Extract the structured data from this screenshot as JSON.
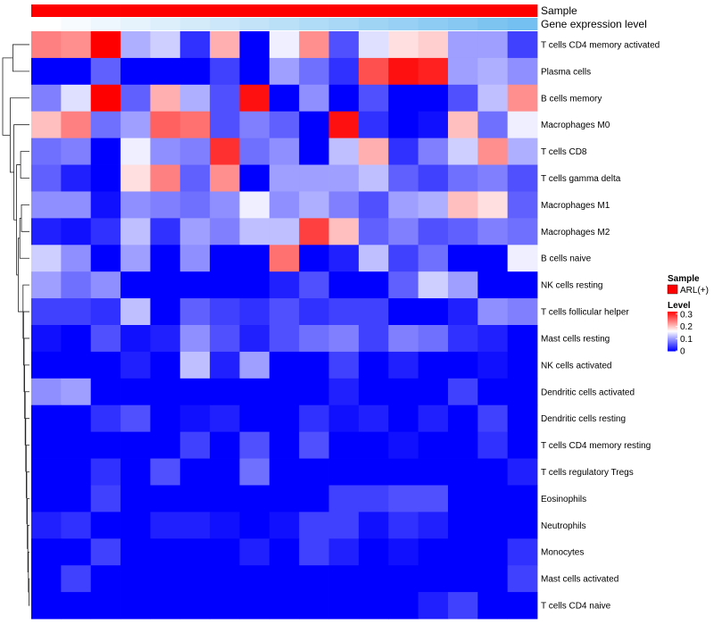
{
  "chart_data": {
    "type": "heatmap",
    "columns": 17,
    "color_scale": {
      "low": "#0000ff",
      "mid": "#ffffff",
      "high": "#ff0000",
      "min": 0,
      "max": 0.32,
      "mid_value": 0.16
    },
    "annotation_bars": [
      {
        "name": "Sample",
        "color": "#ff0000"
      },
      {
        "name": "Gene expression level",
        "colors": [
          "#ffffff",
          "#f7fbfe",
          "#eef7fd",
          "#e6f3fc",
          "#ddeffb",
          "#d4ebfa",
          "#cbe7f9",
          "#c2e3f8",
          "#bae0f8",
          "#b1dcf7",
          "#a8d8f6",
          "#a0d4f5",
          "#97d0f4",
          "#8eccf3",
          "#86c8f2",
          "#7dc4f1",
          "#74c0f0"
        ]
      }
    ],
    "rows": [
      {
        "name": "T cells CD4 memory activated",
        "values": [
          0.24,
          0.23,
          0.32,
          0.11,
          0.13,
          0.03,
          0.21,
          0.0,
          0.15,
          0.23,
          0.05,
          0.14,
          0.18,
          0.19,
          0.1,
          0.1,
          0.04
        ]
      },
      {
        "name": "Plasma cells",
        "values": [
          0.0,
          0.0,
          0.06,
          0.0,
          0.0,
          0.0,
          0.04,
          0.0,
          0.1,
          0.07,
          0.03,
          0.27,
          0.31,
          0.3,
          0.1,
          0.11,
          0.09
        ]
      },
      {
        "name": "B cells memory",
        "values": [
          0.08,
          0.14,
          0.32,
          0.06,
          0.21,
          0.11,
          0.05,
          0.31,
          0.0,
          0.09,
          0.0,
          0.05,
          0.0,
          0.0,
          0.05,
          0.12,
          0.23
        ]
      },
      {
        "name": "Macrophages M0",
        "values": [
          0.2,
          0.24,
          0.07,
          0.1,
          0.26,
          0.25,
          0.05,
          0.08,
          0.06,
          0.0,
          0.31,
          0.03,
          0.0,
          0.01,
          0.2,
          0.07,
          0.15
        ]
      },
      {
        "name": "T cells CD8",
        "values": [
          0.07,
          0.08,
          0.0,
          0.15,
          0.09,
          0.08,
          0.29,
          0.07,
          0.09,
          0.0,
          0.12,
          0.21,
          0.03,
          0.08,
          0.13,
          0.23,
          0.11
        ]
      },
      {
        "name": "T cells gamma delta",
        "values": [
          0.06,
          0.02,
          0.0,
          0.18,
          0.24,
          0.06,
          0.23,
          0.0,
          0.1,
          0.1,
          0.1,
          0.12,
          0.06,
          0.04,
          0.07,
          0.08,
          0.05
        ]
      },
      {
        "name": "Macrophages M1",
        "values": [
          0.09,
          0.09,
          0.01,
          0.09,
          0.08,
          0.07,
          0.09,
          0.15,
          0.09,
          0.11,
          0.08,
          0.05,
          0.1,
          0.11,
          0.2,
          0.18,
          0.06
        ]
      },
      {
        "name": "Macrophages M2",
        "values": [
          0.02,
          0.01,
          0.03,
          0.12,
          0.03,
          0.1,
          0.08,
          0.12,
          0.12,
          0.28,
          0.2,
          0.06,
          0.08,
          0.05,
          0.06,
          0.08,
          0.07
        ]
      },
      {
        "name": "B cells naive",
        "values": [
          0.13,
          0.09,
          0.0,
          0.1,
          0.0,
          0.09,
          0.0,
          0.0,
          0.25,
          0.0,
          0.02,
          0.12,
          0.04,
          0.07,
          0.0,
          0.0,
          0.15
        ]
      },
      {
        "name": "NK cells resting",
        "values": [
          0.1,
          0.07,
          0.09,
          0.0,
          0.0,
          0.0,
          0.0,
          0.0,
          0.02,
          0.05,
          0.0,
          0.0,
          0.06,
          0.13,
          0.1,
          0.0,
          0.0
        ]
      },
      {
        "name": "T cells follicular helper",
        "values": [
          0.04,
          0.04,
          0.03,
          0.12,
          0.0,
          0.06,
          0.04,
          0.03,
          0.05,
          0.03,
          0.04,
          0.04,
          0.0,
          0.0,
          0.02,
          0.09,
          0.08
        ]
      },
      {
        "name": "Mast cells resting",
        "values": [
          0.01,
          0.0,
          0.05,
          0.01,
          0.02,
          0.09,
          0.05,
          0.02,
          0.05,
          0.07,
          0.08,
          0.04,
          0.08,
          0.07,
          0.03,
          0.02,
          0.0
        ]
      },
      {
        "name": "NK cells activated",
        "values": [
          0.0,
          0.0,
          0.0,
          0.02,
          0.0,
          0.12,
          0.02,
          0.1,
          0.0,
          0.0,
          0.04,
          0.0,
          0.02,
          0.0,
          0.0,
          0.01,
          0.0
        ]
      },
      {
        "name": "Dendritic cells activated",
        "values": [
          0.09,
          0.1,
          0.0,
          0.0,
          0.0,
          0.0,
          0.0,
          0.0,
          0.0,
          0.0,
          0.02,
          0.0,
          0.0,
          0.0,
          0.04,
          0.0,
          0.0
        ]
      },
      {
        "name": "Dendritic cells resting",
        "values": [
          0.0,
          0.0,
          0.03,
          0.05,
          0.0,
          0.01,
          0.02,
          0.0,
          0.0,
          0.03,
          0.01,
          0.02,
          0.0,
          0.02,
          0.0,
          0.04,
          0.0
        ]
      },
      {
        "name": "T cells CD4 memory resting",
        "values": [
          0.0,
          0.0,
          0.0,
          0.0,
          0.0,
          0.04,
          0.0,
          0.05,
          0.0,
          0.05,
          0.0,
          0.0,
          0.01,
          0.0,
          0.0,
          0.03,
          0.0
        ]
      },
      {
        "name": "T cells regulatory  Tregs",
        "values": [
          0.0,
          0.0,
          0.03,
          0.0,
          0.05,
          0.0,
          0.0,
          0.07,
          0.0,
          0.0,
          0.0,
          0.0,
          0.0,
          0.0,
          0.0,
          0.0,
          0.02
        ]
      },
      {
        "name": "Eosinophils",
        "values": [
          0.0,
          0.0,
          0.04,
          0.0,
          0.0,
          0.0,
          0.0,
          0.0,
          0.0,
          0.0,
          0.04,
          0.04,
          0.05,
          0.05,
          0.0,
          0.0,
          0.0
        ]
      },
      {
        "name": "Neutrophils",
        "values": [
          0.02,
          0.03,
          0.0,
          0.0,
          0.02,
          0.02,
          0.01,
          0.0,
          0.01,
          0.04,
          0.04,
          0.01,
          0.03,
          0.02,
          0.0,
          0.0,
          0.0
        ]
      },
      {
        "name": "Monocytes",
        "values": [
          0.0,
          0.0,
          0.04,
          0.0,
          0.0,
          0.0,
          0.0,
          0.02,
          0.0,
          0.04,
          0.02,
          0.0,
          0.01,
          0.0,
          0.0,
          0.0,
          0.03
        ]
      },
      {
        "name": "Mast cells activated",
        "values": [
          0.0,
          0.04,
          0.0,
          0.0,
          0.0,
          0.0,
          0.0,
          0.0,
          0.0,
          0.0,
          0.0,
          0.0,
          0.0,
          0.0,
          0.0,
          0.0,
          0.04
        ]
      },
      {
        "name": "T cells CD4 naive",
        "values": [
          0.0,
          0.0,
          0.0,
          0.0,
          0.0,
          0.0,
          0.0,
          0.0,
          0.0,
          0.0,
          0.0,
          0.0,
          0.0,
          0.02,
          0.04,
          0.0,
          0.0
        ]
      }
    ],
    "legend": {
      "sample_title": "Sample",
      "sample_item": "ARL(+)",
      "sample_color": "#ff0000",
      "level_title": "Level",
      "level_ticks": [
        {
          "value": 0.3,
          "label": "0.3"
        },
        {
          "value": 0.2,
          "label": "0.2"
        },
        {
          "value": 0.1,
          "label": "0.1"
        },
        {
          "value": 0,
          "label": "0"
        }
      ]
    },
    "dendrogram": {
      "merges": [
        [
          20,
          21,
          0.02
        ],
        [
          19,
          22,
          0.04
        ],
        [
          18,
          23,
          0.06
        ],
        [
          17,
          24,
          0.08
        ],
        [
          16,
          25,
          0.1
        ],
        [
          15,
          26,
          0.12
        ],
        [
          14,
          27,
          0.14
        ],
        [
          13,
          28,
          0.16
        ],
        [
          12,
          29,
          0.18
        ],
        [
          11,
          30,
          0.2
        ],
        [
          10,
          31,
          0.22
        ],
        [
          9,
          32,
          0.24
        ],
        [
          6,
          7,
          0.3
        ],
        [
          8,
          34,
          0.36
        ],
        [
          4,
          5,
          0.33
        ],
        [
          33,
          35,
          0.42
        ],
        [
          36,
          37,
          0.48
        ],
        [
          3,
          38,
          0.58
        ],
        [
          0,
          1,
          0.62
        ],
        [
          2,
          39,
          0.72
        ],
        [
          40,
          41,
          1.0
        ]
      ]
    }
  }
}
